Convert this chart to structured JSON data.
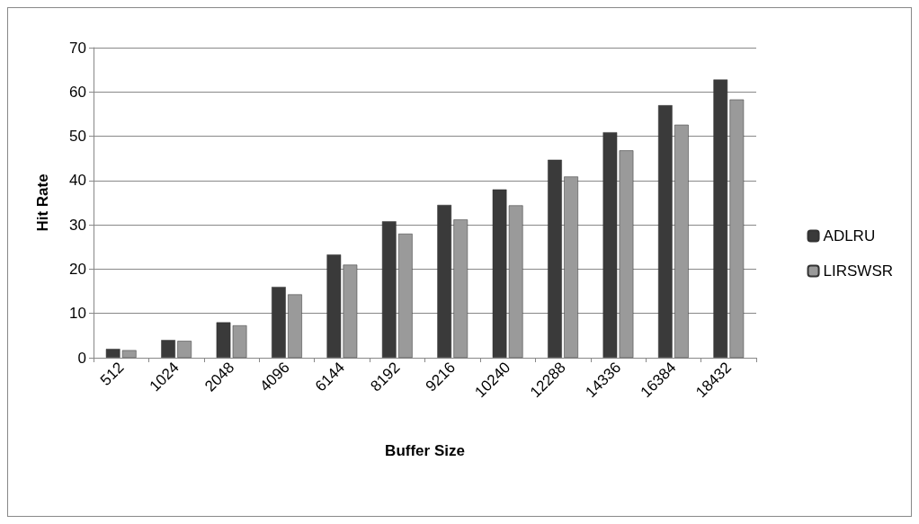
{
  "chart_data": {
    "type": "bar",
    "xlabel": "Buffer Size",
    "ylabel": "Hit Rate",
    "categories": [
      "512",
      "1024",
      "2048",
      "4096",
      "6144",
      "8192",
      "9216",
      "10240",
      "12288",
      "14336",
      "16384",
      "18432"
    ],
    "series": [
      {
        "name": "ADLRU",
        "color": "#3a3a3a",
        "values": [
          2,
          4,
          8,
          16,
          23.3,
          30.8,
          34.5,
          38,
          44.7,
          50.9,
          57,
          62.8
        ]
      },
      {
        "name": "LIRSWSR",
        "color": "#9a9a9a",
        "values": [
          1.7,
          3.8,
          7.3,
          14.3,
          21,
          28,
          31.2,
          34.4,
          40.9,
          46.8,
          52.6,
          58.3
        ]
      }
    ],
    "ylim": [
      0,
      70
    ],
    "yticks": [
      0,
      10,
      20,
      30,
      40,
      50,
      60,
      70
    ],
    "grid": "y",
    "legend": "right"
  }
}
